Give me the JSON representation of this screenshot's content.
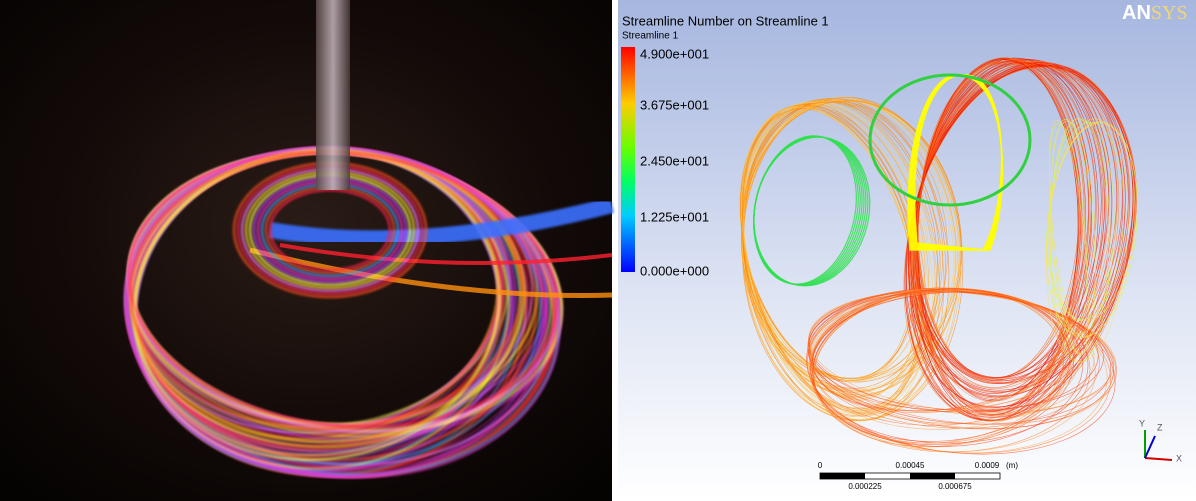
{
  "panel": {
    "legend": {
      "title": "Streamline Number on Streamline 1",
      "subtitle": "Streamline 1",
      "labels": [
        "4.900e+001",
        "3.675e+001",
        "2.450e+001",
        "1.225e+001",
        "0.000e+000"
      ]
    },
    "logo": {
      "part1": "AN",
      "part2": "SYS"
    },
    "scale": {
      "top": [
        "0",
        "0.00045",
        "0.0009",
        "(m)"
      ],
      "bottom": [
        "0.000225",
        "0.000675"
      ]
    },
    "axes": {
      "y": "Y",
      "z": "Z",
      "x": "X"
    }
  }
}
